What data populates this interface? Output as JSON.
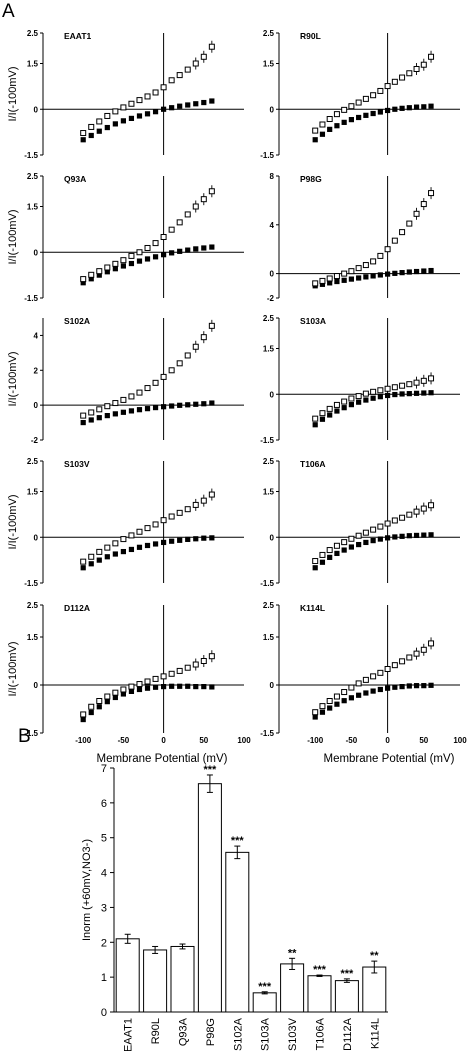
{
  "panel_letters": [
    "A",
    "B"
  ],
  "chart_data": [
    {
      "type": "scatter",
      "panel": "A",
      "ylabel": "I/I(-100mV)",
      "xlabel": "Membrane Potential (mV)",
      "xticks": [
        -100,
        -50,
        0,
        50,
        100
      ],
      "legend": "none",
      "grid": false,
      "subplots": [
        {
          "title": "EAAT1",
          "ylim": [
            -1.5,
            2.5
          ],
          "yticks": [
            "2.5",
            "1.5",
            "0",
            "-1.5"
          ],
          "x": [
            -100,
            -90,
            -80,
            -70,
            -60,
            -50,
            -40,
            -30,
            -20,
            -10,
            0,
            10,
            20,
            30,
            40,
            50,
            60
          ],
          "open": [
            -0.78,
            -0.58,
            -0.4,
            -0.22,
            -0.07,
            0.06,
            0.18,
            0.3,
            0.42,
            0.55,
            0.72,
            0.95,
            1.12,
            1.3,
            1.5,
            1.72,
            2.05
          ],
          "filled": [
            -1.0,
            -0.86,
            -0.72,
            -0.6,
            -0.48,
            -0.38,
            -0.3,
            -0.22,
            -0.15,
            -0.08,
            0.0,
            0.05,
            0.1,
            0.14,
            0.18,
            0.22,
            0.27
          ]
        },
        {
          "title": "R90L",
          "ylim": [
            -1.5,
            2.5
          ],
          "yticks": [
            "2.5",
            "1.5",
            "0",
            "-1.5"
          ],
          "x": [
            -100,
            -90,
            -80,
            -70,
            -60,
            -50,
            -40,
            -30,
            -20,
            -10,
            0,
            10,
            20,
            30,
            40,
            50,
            60
          ],
          "open": [
            -0.7,
            -0.5,
            -0.32,
            -0.16,
            -0.02,
            0.1,
            0.22,
            0.34,
            0.46,
            0.6,
            0.76,
            0.9,
            1.04,
            1.18,
            1.32,
            1.46,
            1.72
          ],
          "filled": [
            -1.0,
            -0.82,
            -0.66,
            -0.54,
            -0.43,
            -0.34,
            -0.27,
            -0.2,
            -0.14,
            -0.09,
            -0.04,
            0.0,
            0.03,
            0.05,
            0.07,
            0.08,
            0.1
          ]
        },
        {
          "title": "Q93A",
          "ylim": [
            -1.5,
            2.5
          ],
          "yticks": [
            "2.5",
            "1.5",
            "0",
            "-1.5"
          ],
          "x": [
            -100,
            -90,
            -80,
            -70,
            -60,
            -50,
            -40,
            -30,
            -20,
            -10,
            0,
            10,
            20,
            30,
            40,
            50,
            60
          ],
          "open": [
            -0.88,
            -0.74,
            -0.62,
            -0.5,
            -0.38,
            -0.26,
            -0.12,
            0.0,
            0.14,
            0.3,
            0.5,
            0.74,
            0.98,
            1.24,
            1.5,
            1.74,
            2.0
          ],
          "filled": [
            -1.0,
            -0.87,
            -0.75,
            -0.64,
            -0.54,
            -0.45,
            -0.37,
            -0.29,
            -0.22,
            -0.15,
            -0.08,
            -0.02,
            0.03,
            0.07,
            0.11,
            0.14,
            0.17
          ]
        },
        {
          "title": "P98G",
          "ylim": [
            -2,
            8
          ],
          "yticks": [
            "8",
            "4",
            "0",
            "-2"
          ],
          "x": [
            -100,
            -90,
            -80,
            -70,
            -60,
            -50,
            -40,
            -30,
            -20,
            -10,
            0,
            10,
            20,
            30,
            40,
            50,
            60
          ],
          "open": [
            -0.8,
            -0.6,
            -0.4,
            -0.2,
            0.0,
            0.2,
            0.45,
            0.7,
            1.0,
            1.45,
            2.0,
            2.7,
            3.4,
            4.1,
            4.9,
            5.7,
            6.6
          ],
          "filled": [
            -1.0,
            -0.88,
            -0.76,
            -0.65,
            -0.55,
            -0.45,
            -0.36,
            -0.27,
            -0.19,
            -0.11,
            -0.04,
            0.02,
            0.08,
            0.13,
            0.17,
            0.21,
            0.25
          ]
        },
        {
          "title": "S102A",
          "ylim": [
            -2,
            5
          ],
          "yticks": [
            "4",
            "2",
            "0",
            "-2"
          ],
          "x": [
            -100,
            -90,
            -80,
            -70,
            -60,
            -50,
            -40,
            -30,
            -20,
            -10,
            0,
            10,
            20,
            30,
            40,
            50,
            60
          ],
          "open": [
            -0.6,
            -0.42,
            -0.24,
            -0.06,
            0.12,
            0.3,
            0.5,
            0.72,
            0.98,
            1.28,
            1.62,
            2.0,
            2.4,
            2.85,
            3.35,
            3.9,
            4.55
          ],
          "filled": [
            -1.0,
            -0.85,
            -0.72,
            -0.6,
            -0.5,
            -0.41,
            -0.33,
            -0.26,
            -0.2,
            -0.14,
            -0.09,
            -0.05,
            -0.01,
            0.02,
            0.05,
            0.08,
            0.12
          ]
        },
        {
          "title": "S103A",
          "ylim": [
            -1.5,
            2.5
          ],
          "yticks": [
            "2.5",
            "1.5",
            "0",
            "-1.5"
          ],
          "x": [
            -100,
            -90,
            -80,
            -70,
            -60,
            -50,
            -40,
            -30,
            -20,
            -10,
            0,
            10,
            20,
            30,
            40,
            50,
            60
          ],
          "open": [
            -0.8,
            -0.62,
            -0.48,
            -0.35,
            -0.24,
            -0.14,
            -0.06,
            0.02,
            0.08,
            0.13,
            0.18,
            0.23,
            0.28,
            0.33,
            0.38,
            0.44,
            0.52
          ],
          "filled": [
            -1.0,
            -0.82,
            -0.68,
            -0.55,
            -0.44,
            -0.34,
            -0.26,
            -0.19,
            -0.13,
            -0.08,
            -0.04,
            -0.01,
            0.01,
            0.02,
            0.03,
            0.04,
            0.05
          ]
        },
        {
          "title": "S103V",
          "ylim": [
            -1.5,
            2.5
          ],
          "yticks": [
            "2.5",
            "1.5",
            "0",
            "-1.5"
          ],
          "x": [
            -100,
            -90,
            -80,
            -70,
            -60,
            -50,
            -40,
            -30,
            -20,
            -10,
            0,
            10,
            20,
            30,
            40,
            50,
            60
          ],
          "open": [
            -0.8,
            -0.64,
            -0.48,
            -0.34,
            -0.2,
            -0.06,
            0.06,
            0.18,
            0.3,
            0.42,
            0.56,
            0.68,
            0.8,
            0.92,
            1.06,
            1.2,
            1.4
          ],
          "filled": [
            -1.0,
            -0.87,
            -0.75,
            -0.64,
            -0.55,
            -0.47,
            -0.4,
            -0.33,
            -0.27,
            -0.22,
            -0.17,
            -0.13,
            -0.1,
            -0.07,
            -0.05,
            -0.03,
            -0.02
          ]
        },
        {
          "title": "T106A",
          "ylim": [
            -1.5,
            2.5
          ],
          "yticks": [
            "2.5",
            "1.5",
            "0",
            "-1.5"
          ],
          "x": [
            -100,
            -90,
            -80,
            -70,
            -60,
            -50,
            -40,
            -30,
            -20,
            -10,
            0,
            10,
            20,
            30,
            40,
            50,
            60
          ],
          "open": [
            -0.78,
            -0.58,
            -0.42,
            -0.28,
            -0.16,
            -0.05,
            0.05,
            0.15,
            0.25,
            0.35,
            0.45,
            0.55,
            0.64,
            0.74,
            0.84,
            0.94,
            1.05
          ],
          "filled": [
            -1.0,
            -0.82,
            -0.66,
            -0.53,
            -0.42,
            -0.32,
            -0.24,
            -0.17,
            -0.11,
            -0.06,
            -0.02,
            0.01,
            0.03,
            0.05,
            0.06,
            0.07,
            0.08
          ]
        },
        {
          "title": "D112A",
          "ylim": [
            -1.5,
            2.5
          ],
          "yticks": [
            "2.5",
            "1.5",
            "0",
            "-1.5"
          ],
          "x": [
            -100,
            -90,
            -80,
            -70,
            -60,
            -50,
            -40,
            -30,
            -20,
            -10,
            0,
            10,
            20,
            30,
            40,
            50,
            60
          ],
          "open": [
            -0.92,
            -0.68,
            -0.5,
            -0.36,
            -0.24,
            -0.14,
            -0.05,
            0.03,
            0.11,
            0.19,
            0.27,
            0.35,
            0.44,
            0.54,
            0.64,
            0.75,
            0.9
          ],
          "filled": [
            -1.08,
            -0.86,
            -0.68,
            -0.52,
            -0.39,
            -0.28,
            -0.2,
            -0.14,
            -0.1,
            -0.07,
            -0.05,
            -0.04,
            -0.04,
            -0.04,
            -0.05,
            -0.05,
            -0.06
          ]
        },
        {
          "title": "K114L",
          "ylim": [
            -1.5,
            2.5
          ],
          "yticks": [
            "2.5",
            "1.5",
            "0",
            "-1.5"
          ],
          "x": [
            -100,
            -90,
            -80,
            -70,
            -60,
            -50,
            -40,
            -30,
            -20,
            -10,
            0,
            10,
            20,
            30,
            40,
            50,
            60
          ],
          "open": [
            -0.85,
            -0.66,
            -0.5,
            -0.36,
            -0.22,
            -0.08,
            0.05,
            0.16,
            0.27,
            0.38,
            0.5,
            0.62,
            0.74,
            0.86,
            0.98,
            1.1,
            1.3
          ],
          "filled": [
            -1.0,
            -0.85,
            -0.72,
            -0.6,
            -0.49,
            -0.4,
            -0.32,
            -0.25,
            -0.19,
            -0.14,
            -0.1,
            -0.07,
            -0.05,
            -0.03,
            -0.02,
            -0.02,
            -0.01
          ]
        }
      ]
    },
    {
      "type": "bar",
      "panel": "B",
      "ylabel": "Inorm (+60mV,NO3-)",
      "xlabel": "",
      "ylim": [
        0,
        7
      ],
      "yticks": [
        0,
        1,
        2,
        3,
        4,
        5,
        6,
        7
      ],
      "legend": "none",
      "grid": false,
      "categories": [
        "EAAT1",
        "R90L",
        "Q93A",
        "P98G",
        "S102A",
        "S103A",
        "S103V",
        "T106A",
        "D112A",
        "K114L"
      ],
      "values": [
        2.1,
        1.78,
        1.88,
        6.55,
        4.58,
        0.55,
        1.38,
        1.04,
        0.9,
        1.29
      ],
      "errors": [
        0.13,
        0.1,
        0.07,
        0.25,
        0.18,
        0.03,
        0.16,
        0.02,
        0.05,
        0.17
      ],
      "annotations": [
        "",
        "",
        "",
        "***",
        "***",
        "***",
        "**",
        "***",
        "***",
        "**"
      ]
    }
  ]
}
